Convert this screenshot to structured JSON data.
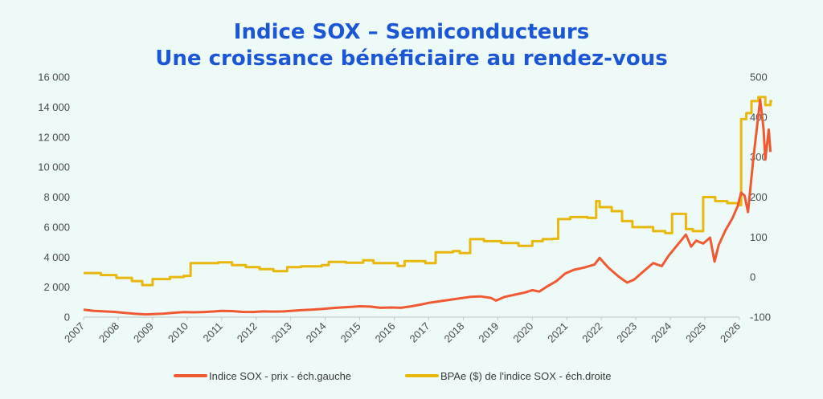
{
  "title_line1": "Indice SOX – Semiconducteurs",
  "title_line2": "Une croissance bénéficiaire au rendez-vous",
  "colors": {
    "price": "#f05a32",
    "eps": "#e8b80c",
    "title": "#1a56d6",
    "background": "#eefaf8"
  },
  "chart_data": {
    "type": "line",
    "left_axis": {
      "ylim": [
        0,
        16000
      ],
      "ticks": [
        0,
        2000,
        4000,
        6000,
        8000,
        10000,
        12000,
        14000,
        16000
      ],
      "tick_labels": [
        "0",
        "2 000",
        "4 000",
        "6 000",
        "8 000",
        "10 000",
        "12 000",
        "14 000",
        "16 000"
      ]
    },
    "right_axis": {
      "ylim": [
        -100,
        500
      ],
      "ticks": [
        -100,
        0,
        100,
        200,
        300,
        400,
        500
      ],
      "tick_labels": [
        "-100",
        "0",
        "100",
        "200",
        "300",
        "400",
        "500"
      ]
    },
    "x_axis": {
      "xlim": [
        2007,
        2026
      ],
      "tick_labels": [
        "2007",
        "2008",
        "2009",
        "2010",
        "2011",
        "2012",
        "2013",
        "2014",
        "2015",
        "2016",
        "2017",
        "2018",
        "2019",
        "2020",
        "2021",
        "2022",
        "2023",
        "2024",
        "2025",
        "2026"
      ]
    },
    "grid": false,
    "legend_position": "bottom",
    "series": [
      {
        "name": "Indice SOX - prix - éch.gauche",
        "axis": "left",
        "points": [
          [
            2007.0,
            500
          ],
          [
            2007.3,
            420
          ],
          [
            2007.6,
            380
          ],
          [
            2007.9,
            350
          ],
          [
            2008.2,
            280
          ],
          [
            2008.5,
            220
          ],
          [
            2008.8,
            180
          ],
          [
            2009.0,
            200
          ],
          [
            2009.3,
            230
          ],
          [
            2009.6,
            290
          ],
          [
            2009.9,
            330
          ],
          [
            2010.2,
            320
          ],
          [
            2010.5,
            340
          ],
          [
            2010.8,
            380
          ],
          [
            2011.0,
            420
          ],
          [
            2011.3,
            400
          ],
          [
            2011.6,
            350
          ],
          [
            2011.9,
            340
          ],
          [
            2012.2,
            380
          ],
          [
            2012.5,
            370
          ],
          [
            2012.8,
            380
          ],
          [
            2013.0,
            420
          ],
          [
            2013.3,
            460
          ],
          [
            2013.6,
            500
          ],
          [
            2013.9,
            540
          ],
          [
            2014.2,
            600
          ],
          [
            2014.5,
            650
          ],
          [
            2014.8,
            690
          ],
          [
            2015.0,
            720
          ],
          [
            2015.3,
            700
          ],
          [
            2015.6,
            620
          ],
          [
            2015.9,
            640
          ],
          [
            2016.2,
            620
          ],
          [
            2016.5,
            720
          ],
          [
            2016.8,
            850
          ],
          [
            2017.0,
            950
          ],
          [
            2017.3,
            1050
          ],
          [
            2017.6,
            1150
          ],
          [
            2017.9,
            1250
          ],
          [
            2018.2,
            1350
          ],
          [
            2018.5,
            1380
          ],
          [
            2018.8,
            1280
          ],
          [
            2018.95,
            1100
          ],
          [
            2019.2,
            1350
          ],
          [
            2019.5,
            1500
          ],
          [
            2019.8,
            1650
          ],
          [
            2020.0,
            1800
          ],
          [
            2020.2,
            1700
          ],
          [
            2020.4,
            2000
          ],
          [
            2020.7,
            2400
          ],
          [
            2020.95,
            2900
          ],
          [
            2021.2,
            3150
          ],
          [
            2021.5,
            3300
          ],
          [
            2021.8,
            3500
          ],
          [
            2021.95,
            3950
          ],
          [
            2022.2,
            3300
          ],
          [
            2022.5,
            2700
          ],
          [
            2022.75,
            2300
          ],
          [
            2022.95,
            2500
          ],
          [
            2023.2,
            3000
          ],
          [
            2023.5,
            3600
          ],
          [
            2023.75,
            3400
          ],
          [
            2023.95,
            4100
          ],
          [
            2024.2,
            4800
          ],
          [
            2024.45,
            5500
          ],
          [
            2024.6,
            4700
          ],
          [
            2024.75,
            5100
          ],
          [
            2024.95,
            4900
          ],
          [
            2025.15,
            5300
          ],
          [
            2025.28,
            3700
          ],
          [
            2025.4,
            4800
          ],
          [
            2025.6,
            5800
          ],
          [
            2025.8,
            6600
          ],
          [
            2025.95,
            7400
          ],
          [
            2026.05,
            8300
          ],
          [
            2026.15,
            8100
          ],
          [
            2026.25,
            7000
          ],
          [
            2026.4,
            10500
          ],
          [
            2026.5,
            12500
          ],
          [
            2026.6,
            14500
          ],
          [
            2026.7,
            12500
          ],
          [
            2026.75,
            10500
          ],
          [
            2026.85,
            12500
          ],
          [
            2026.9,
            11000
          ]
        ]
      },
      {
        "name": "BPAe ($) de l'indice SOX - éch.droite",
        "axis": "right",
        "steps": [
          [
            2007.0,
            10
          ],
          [
            2007.5,
            5
          ],
          [
            2007.95,
            -2
          ],
          [
            2008.4,
            -10
          ],
          [
            2008.7,
            -20
          ],
          [
            2009.0,
            -5
          ],
          [
            2009.5,
            0
          ],
          [
            2009.9,
            3
          ],
          [
            2010.1,
            35
          ],
          [
            2010.9,
            37
          ],
          [
            2011.3,
            30
          ],
          [
            2011.7,
            25
          ],
          [
            2012.1,
            20
          ],
          [
            2012.5,
            15
          ],
          [
            2012.9,
            25
          ],
          [
            2013.3,
            27
          ],
          [
            2013.9,
            30
          ],
          [
            2014.1,
            38
          ],
          [
            2014.6,
            36
          ],
          [
            2015.1,
            42
          ],
          [
            2015.4,
            35
          ],
          [
            2016.1,
            28
          ],
          [
            2016.3,
            40
          ],
          [
            2016.9,
            35
          ],
          [
            2017.2,
            62
          ],
          [
            2017.7,
            65
          ],
          [
            2017.9,
            60
          ],
          [
            2018.2,
            95
          ],
          [
            2018.6,
            90
          ],
          [
            2019.1,
            85
          ],
          [
            2019.6,
            78
          ],
          [
            2020.0,
            90
          ],
          [
            2020.3,
            95
          ],
          [
            2020.6,
            96
          ],
          [
            2020.75,
            145
          ],
          [
            2021.1,
            150
          ],
          [
            2021.6,
            148
          ],
          [
            2021.85,
            190
          ],
          [
            2021.95,
            175
          ],
          [
            2022.3,
            165
          ],
          [
            2022.6,
            140
          ],
          [
            2022.9,
            125
          ],
          [
            2023.5,
            115
          ],
          [
            2023.85,
            110
          ],
          [
            2024.05,
            158
          ],
          [
            2024.45,
            120
          ],
          [
            2024.65,
            115
          ],
          [
            2024.95,
            200
          ],
          [
            2025.3,
            190
          ],
          [
            2025.65,
            185
          ],
          [
            2026.0,
            180
          ],
          [
            2026.05,
            395
          ],
          [
            2026.2,
            410
          ],
          [
            2026.35,
            440
          ],
          [
            2026.55,
            450
          ],
          [
            2026.75,
            430
          ],
          [
            2026.9,
            440
          ]
        ]
      }
    ]
  }
}
